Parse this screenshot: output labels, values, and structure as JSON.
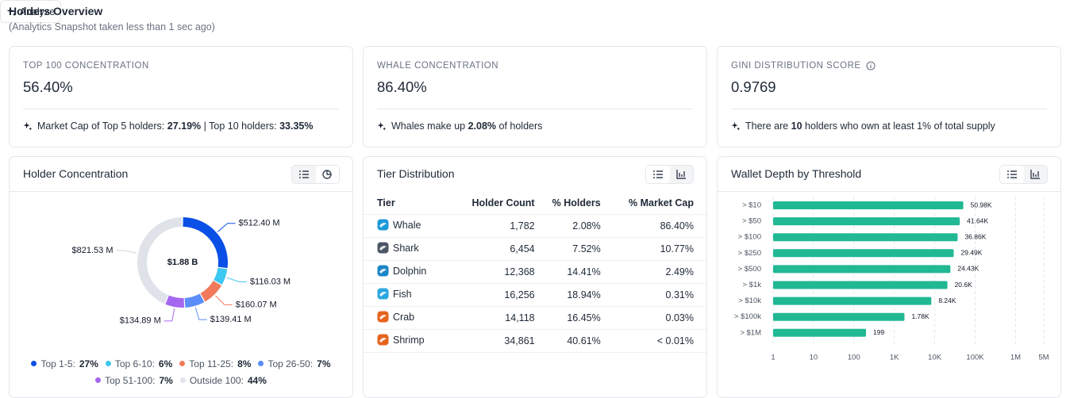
{
  "header": {
    "title": "Holders Overview",
    "subtitle": "(Analytics Snapshot taken less than 1 sec ago)",
    "button": "Analyze"
  },
  "cards": [
    {
      "label": "TOP 100 CONCENTRATION",
      "value": "56.40%",
      "note": [
        "Market Cap of Top 5 holders: ",
        "27.19%",
        " | Top 10 holders: ",
        "33.35%"
      ]
    },
    {
      "label": "WHALE CONCENTRATION",
      "value": "86.40%",
      "note": [
        "Whales make up ",
        "2.08%",
        " of holders"
      ]
    },
    {
      "label": "GINI DISTRIBUTION SCORE",
      "value": "0.9769",
      "note": [
        "There are ",
        "10",
        " holders who own at least 1% of total supply"
      ]
    }
  ],
  "table": {
    "title": "Tier Distribution",
    "columns": [
      "Tier",
      "Holder Count",
      "% Holders",
      "% Market Cap"
    ],
    "rows": [
      [
        "Whale",
        "1,782",
        "2.08%",
        "86.40%"
      ],
      [
        "Shark",
        "6,454",
        "7.52%",
        "10.77%"
      ],
      [
        "Dolphin",
        "12,368",
        "14.41%",
        "2.49%"
      ],
      [
        "Fish",
        "16,256",
        "18.94%",
        "0.31%"
      ],
      [
        "Crab",
        "14,118",
        "16.45%",
        "0.03%"
      ],
      [
        "Shrimp",
        "34,861",
        "40.61%",
        "< 0.01%"
      ]
    ]
  },
  "chart_data": [
    {
      "type": "donut",
      "title": "Holder Concentration",
      "center_label": "$1.88 B",
      "categories": [
        "Top 1-5:",
        "Top 6-10:",
        "Top 11-25:",
        "Top 26-50:",
        "Top 51-100:",
        "Outside 100:"
      ],
      "values": [
        512.4,
        116.03,
        160.07,
        139.41,
        134.89,
        821.53
      ],
      "value_labels": [
        "$512.40 M",
        "$116.03 M",
        "$160.07 M",
        "$139.41 M",
        "$134.89 M",
        "$821.53 M"
      ],
      "shares": [
        "27%",
        "6%",
        "8%",
        "7%",
        "7%",
        "44%"
      ],
      "colors": [
        "#0a4fe6",
        "#3cc8f0",
        "#f27a5c",
        "#5b8ef8",
        "#a567ef",
        "#dfe3e9"
      ]
    },
    {
      "type": "hbar",
      "title": "Wallet Depth by Threshold",
      "categories": [
        "> $10",
        "> $50",
        "> $100",
        "> $250",
        "> $500",
        "> $1k",
        "> $10k",
        "> $100k",
        "> $1M"
      ],
      "values": [
        50980,
        41640,
        36860,
        29490,
        24430,
        20600,
        8240,
        1780,
        199
      ],
      "value_labels": [
        "50.98K",
        "41.64K",
        "36.86K",
        "29.49K",
        "24.43K",
        "20.6K",
        "8.24K",
        "1.78K",
        "199"
      ],
      "color": "#21b894",
      "xlim": [
        1,
        5000000
      ],
      "xticks": [
        1,
        10,
        100,
        {
          "value": 1000,
          "label": "1K"
        },
        {
          "value": 10000,
          "label": "10K"
        },
        {
          "value": 100000,
          "label": "100K"
        },
        {
          "value": 1000000,
          "label": "1M"
        },
        {
          "value": 5000000,
          "label": "5M"
        }
      ],
      "log_scale": true,
      "grid": true
    }
  ]
}
